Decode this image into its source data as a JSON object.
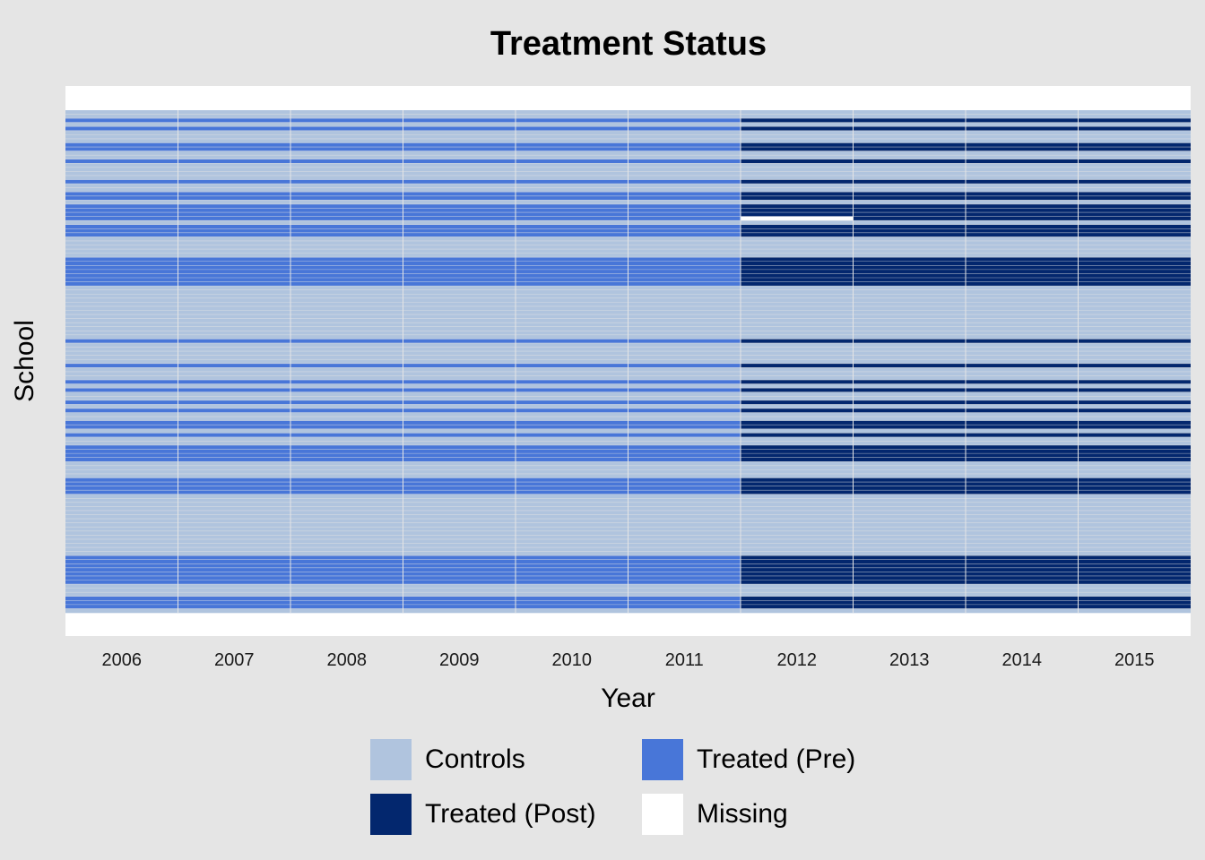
{
  "chart_data": {
    "type": "heatmap",
    "title": "Treatment Status",
    "xlabel": "Year",
    "ylabel": "School",
    "x": [
      "2006",
      "2007",
      "2008",
      "2009",
      "2010",
      "2011",
      "2012",
      "2013",
      "2014",
      "2015"
    ],
    "treatment_start": "2012",
    "grid": true,
    "legend_position": "bottom",
    "colors": {
      "control": "#b0c4de",
      "treated_pre": "#4876d8",
      "treated_post": "#03276e",
      "missing": "#ffffff",
      "grid": "#e5e5e5"
    },
    "legend": [
      {
        "key": "control",
        "label": "Controls"
      },
      {
        "key": "treated_pre",
        "label": "Treated (Pre)"
      },
      {
        "key": "treated_post",
        "label": "Treated (Post)"
      },
      {
        "key": "missing",
        "label": "Missing"
      }
    ],
    "schools_status": [
      "C",
      "C",
      "T",
      "C",
      "T",
      "C",
      "C",
      "C",
      "T",
      "T",
      "C",
      "C",
      "T",
      "C",
      "C",
      "C",
      "C",
      "T",
      "C",
      "C",
      "T",
      "T",
      "C",
      "T",
      "T",
      "T",
      "T",
      "C",
      "T",
      "T",
      "T",
      "C",
      "C",
      "C",
      "C",
      "C",
      "T",
      "T",
      "T",
      "T",
      "T",
      "T",
      "T",
      "C",
      "C",
      "C",
      "C",
      "C",
      "C",
      "C",
      "C",
      "C",
      "C",
      "C",
      "C",
      "C",
      "T",
      "C",
      "C",
      "C",
      "C",
      "C",
      "T",
      "C",
      "C",
      "C",
      "T",
      "C",
      "T",
      "C",
      "C",
      "T",
      "C",
      "T",
      "C",
      "C",
      "T",
      "T",
      "C",
      "T",
      "C",
      "C",
      "T",
      "T",
      "T",
      "T",
      "C",
      "C",
      "C",
      "C",
      "T",
      "T",
      "T",
      "T",
      "C",
      "C",
      "C",
      "C",
      "C",
      "C",
      "C",
      "C",
      "C",
      "C",
      "C",
      "C",
      "C",
      "C",
      "C",
      "T",
      "T",
      "T",
      "T",
      "T",
      "T",
      "T",
      "C",
      "C",
      "C",
      "T",
      "T",
      "T",
      "C"
    ],
    "missing_cells": [
      {
        "school": 26,
        "year": "2012"
      }
    ]
  }
}
